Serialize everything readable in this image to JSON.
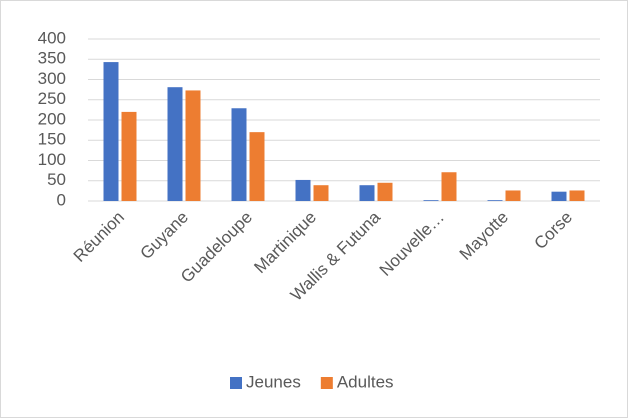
{
  "chart_data": {
    "type": "bar",
    "categories": [
      "Réunion",
      "Guyane",
      "Guadeloupe",
      "Martinique",
      "Wallis & Futuna",
      "Nouvelle…",
      "Mayotte",
      "Corse"
    ],
    "series": [
      {
        "name": "Jeunes",
        "color": "#4472c4",
        "values": [
          343,
          281,
          229,
          52,
          39,
          2,
          2,
          23
        ]
      },
      {
        "name": "Adultes",
        "color": "#ed7d31",
        "values": [
          220,
          273,
          170,
          39,
          45,
          71,
          26,
          26
        ]
      }
    ],
    "ylim": [
      0,
      400
    ],
    "yticks": [
      0,
      50,
      100,
      150,
      200,
      250,
      300,
      350,
      400
    ],
    "grid": true,
    "legend": "bottom"
  }
}
